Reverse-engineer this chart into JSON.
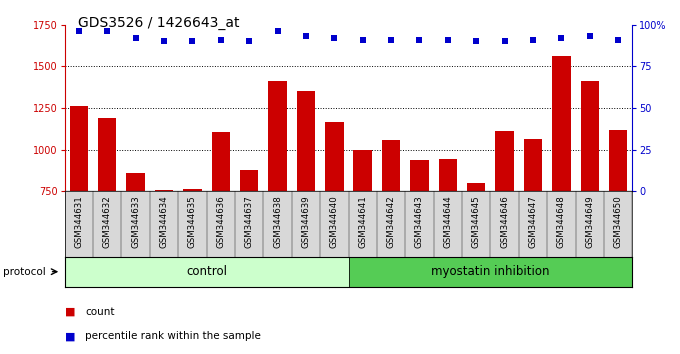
{
  "title": "GDS3526 / 1426643_at",
  "samples": [
    "GSM344631",
    "GSM344632",
    "GSM344633",
    "GSM344634",
    "GSM344635",
    "GSM344636",
    "GSM344637",
    "GSM344638",
    "GSM344639",
    "GSM344640",
    "GSM344641",
    "GSM344642",
    "GSM344643",
    "GSM344644",
    "GSM344645",
    "GSM344646",
    "GSM344647",
    "GSM344648",
    "GSM344649",
    "GSM344650"
  ],
  "counts": [
    1260,
    1190,
    860,
    755,
    765,
    1105,
    880,
    1415,
    1350,
    1165,
    1000,
    1060,
    940,
    945,
    800,
    1110,
    1065,
    1560,
    1415,
    1115
  ],
  "percentile_ranks": [
    96,
    96,
    92,
    90,
    90,
    91,
    90,
    96,
    93,
    92,
    91,
    91,
    91,
    91,
    90,
    90,
    91,
    92,
    93,
    91
  ],
  "control_count": 10,
  "ylim_left": [
    750,
    1750
  ],
  "ylim_right": [
    0,
    100
  ],
  "yticks_left": [
    750,
    1000,
    1250,
    1500,
    1750
  ],
  "yticks_right": [
    0,
    25,
    50,
    75,
    100
  ],
  "bar_color": "#cc0000",
  "dot_color": "#0000cc",
  "control_label": "control",
  "myostatin_label": "myostatin inhibition",
  "protocol_label": "protocol",
  "legend_count": "count",
  "legend_percentile": "percentile rank within the sample",
  "control_bg": "#ccffcc",
  "myostatin_bg": "#55cc55",
  "label_bg": "#d8d8d8",
  "title_fontsize": 10,
  "axis_fontsize": 7,
  "tick_fontsize": 7
}
